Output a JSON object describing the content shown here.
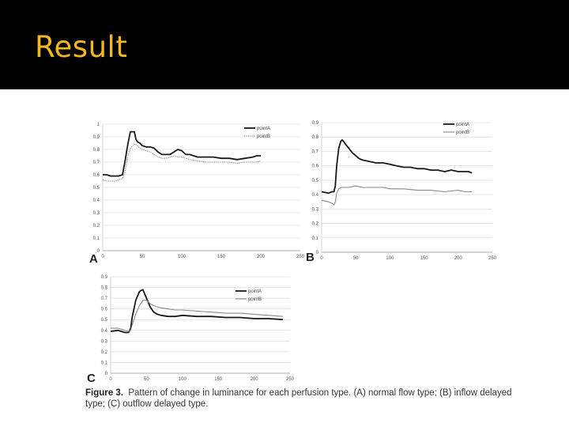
{
  "slide": {
    "title": "Result"
  },
  "caption": {
    "label": "Figure 3.",
    "text": "Pattern of change in luminance for each perfusion type. (A) normal flow type; (B) inflow delayed type; (C) outflow delayed type."
  },
  "colors": {
    "header_bg": "#000000",
    "title": "#f2b81d",
    "pointA": "#1a1a1a",
    "pointB": "#888888",
    "grid": "#d4d4d4"
  },
  "chart_data": [
    {
      "type": "line",
      "panel_label": "A",
      "xlim": [
        0,
        250
      ],
      "ylim": [
        0,
        1
      ],
      "x_ticks": [
        "0",
        "50",
        "100",
        "150",
        "200",
        "250"
      ],
      "y_ticks": [
        "0",
        "0.1",
        "0.2",
        "0.3",
        "0.4",
        "0.5",
        "0.6",
        "0.7",
        "0.8",
        "0.9",
        "1"
      ],
      "grid": true,
      "legend_position": "top-right",
      "series": [
        {
          "name": "pointA",
          "style": "solid",
          "x": [
            0,
            5,
            10,
            15,
            20,
            25,
            28,
            32,
            35,
            38,
            40,
            42,
            44,
            47,
            50,
            55,
            60,
            65,
            70,
            75,
            80,
            85,
            90,
            95,
            100,
            105,
            110,
            120,
            130,
            140,
            150,
            160,
            170,
            180,
            190,
            195,
            200
          ],
          "y": [
            0.6,
            0.6,
            0.59,
            0.59,
            0.59,
            0.6,
            0.7,
            0.85,
            0.94,
            0.94,
            0.94,
            0.88,
            0.86,
            0.85,
            0.83,
            0.82,
            0.82,
            0.81,
            0.78,
            0.76,
            0.76,
            0.76,
            0.78,
            0.8,
            0.79,
            0.76,
            0.76,
            0.74,
            0.74,
            0.74,
            0.73,
            0.73,
            0.72,
            0.73,
            0.74,
            0.75,
            0.75
          ]
        },
        {
          "name": "pointB",
          "style": "dotted",
          "x": [
            0,
            5,
            10,
            15,
            20,
            25,
            28,
            32,
            35,
            38,
            40,
            42,
            45,
            50,
            55,
            60,
            65,
            70,
            75,
            80,
            85,
            90,
            95,
            100,
            110,
            120,
            130,
            140,
            150,
            160,
            170,
            180,
            190,
            195,
            200
          ],
          "y": [
            0.56,
            0.55,
            0.55,
            0.55,
            0.56,
            0.57,
            0.62,
            0.75,
            0.81,
            0.83,
            0.84,
            0.84,
            0.82,
            0.8,
            0.79,
            0.78,
            0.76,
            0.74,
            0.73,
            0.73,
            0.74,
            0.75,
            0.74,
            0.74,
            0.72,
            0.71,
            0.7,
            0.7,
            0.7,
            0.7,
            0.69,
            0.7,
            0.7,
            0.7,
            0.71
          ]
        }
      ]
    },
    {
      "type": "line",
      "panel_label": "B",
      "xlim": [
        0,
        250
      ],
      "ylim": [
        0,
        0.9
      ],
      "x_ticks": [
        "0",
        "50",
        "100",
        "150",
        "200",
        "250"
      ],
      "y_ticks": [
        "0",
        "0.1",
        "0.2",
        "0.3",
        "0.4",
        "0.5",
        "0.6",
        "0.7",
        "0.8",
        "0.9"
      ],
      "grid": true,
      "legend_position": "top-right",
      "series": [
        {
          "name": "pointA",
          "style": "solid",
          "x": [
            0,
            10,
            15,
            18,
            20,
            22,
            25,
            28,
            30,
            32,
            35,
            40,
            45,
            50,
            55,
            60,
            70,
            80,
            90,
            100,
            110,
            120,
            130,
            140,
            150,
            160,
            170,
            180,
            190,
            200,
            210,
            215,
            220
          ],
          "y": [
            0.42,
            0.41,
            0.42,
            0.42,
            0.46,
            0.6,
            0.72,
            0.77,
            0.78,
            0.77,
            0.75,
            0.72,
            0.69,
            0.67,
            0.65,
            0.64,
            0.63,
            0.62,
            0.62,
            0.61,
            0.6,
            0.59,
            0.59,
            0.58,
            0.58,
            0.57,
            0.57,
            0.56,
            0.57,
            0.56,
            0.56,
            0.56,
            0.55
          ]
        },
        {
          "name": "pointB",
          "style": "solid",
          "x": [
            0,
            10,
            15,
            18,
            20,
            22,
            25,
            28,
            30,
            35,
            40,
            50,
            60,
            70,
            80,
            90,
            100,
            120,
            140,
            160,
            180,
            200,
            210,
            220
          ],
          "y": [
            0.36,
            0.35,
            0.34,
            0.33,
            0.35,
            0.41,
            0.44,
            0.45,
            0.45,
            0.45,
            0.45,
            0.46,
            0.45,
            0.45,
            0.45,
            0.45,
            0.44,
            0.44,
            0.43,
            0.43,
            0.42,
            0.43,
            0.42,
            0.42
          ]
        }
      ]
    },
    {
      "type": "line",
      "panel_label": "C",
      "xlim": [
        0,
        250
      ],
      "ylim": [
        0,
        0.9
      ],
      "x_ticks": [
        "0",
        "50",
        "100",
        "150",
        "200",
        "250"
      ],
      "y_ticks": [
        "0",
        "0.1",
        "0.2",
        "0.3",
        "0.4",
        "0.5",
        "0.6",
        "0.7",
        "0.8",
        "0.9"
      ],
      "grid": true,
      "legend_position": "top-right",
      "series": [
        {
          "name": "pointA",
          "style": "solid",
          "x": [
            0,
            10,
            15,
            20,
            25,
            28,
            30,
            35,
            40,
            42,
            45,
            48,
            50,
            55,
            60,
            65,
            70,
            80,
            90,
            100,
            120,
            140,
            160,
            180,
            200,
            220,
            240
          ],
          "y": [
            0.39,
            0.4,
            0.39,
            0.38,
            0.38,
            0.42,
            0.52,
            0.68,
            0.76,
            0.77,
            0.78,
            0.73,
            0.7,
            0.62,
            0.57,
            0.55,
            0.54,
            0.53,
            0.53,
            0.54,
            0.53,
            0.53,
            0.52,
            0.52,
            0.51,
            0.51,
            0.5
          ]
        },
        {
          "name": "pointB",
          "style": "solid",
          "x": [
            0,
            10,
            15,
            20,
            25,
            28,
            30,
            35,
            40,
            45,
            50,
            55,
            60,
            65,
            70,
            80,
            90,
            100,
            120,
            140,
            160,
            180,
            200,
            220,
            240
          ],
          "y": [
            0.42,
            0.42,
            0.41,
            0.4,
            0.39,
            0.4,
            0.45,
            0.55,
            0.63,
            0.68,
            0.68,
            0.65,
            0.63,
            0.62,
            0.61,
            0.6,
            0.59,
            0.59,
            0.58,
            0.57,
            0.56,
            0.56,
            0.55,
            0.54,
            0.53
          ]
        }
      ]
    }
  ]
}
